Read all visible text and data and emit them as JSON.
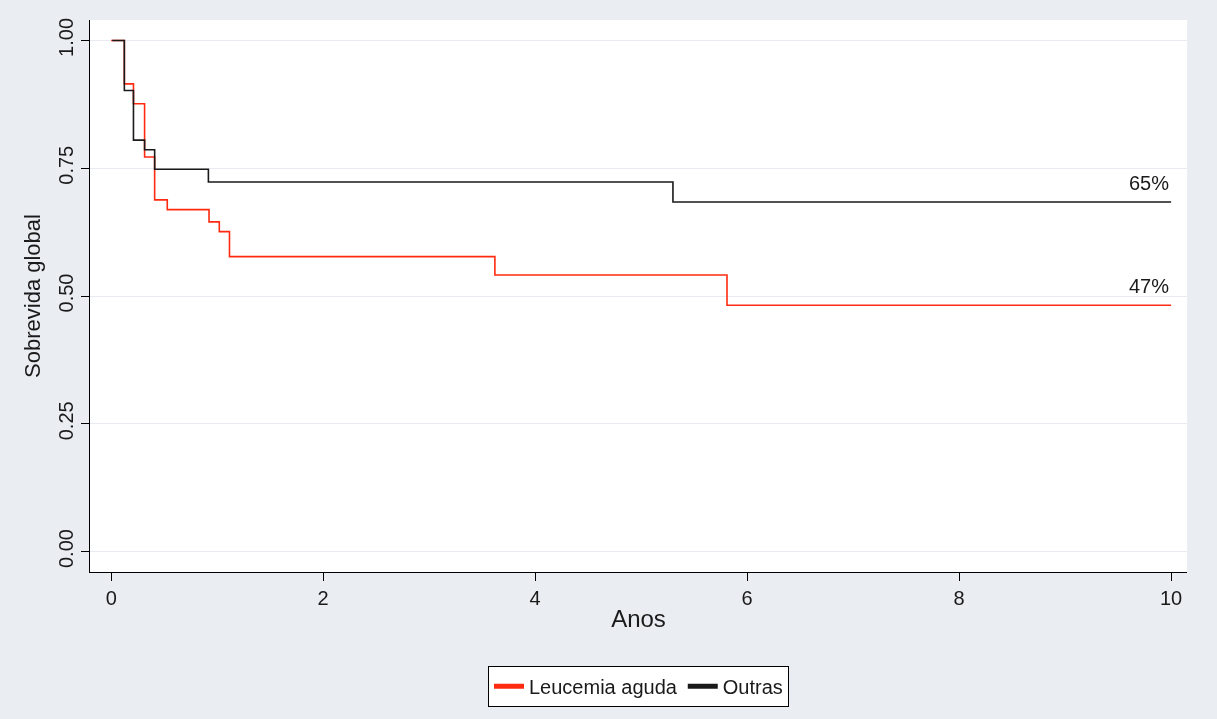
{
  "chart_data": {
    "type": "step",
    "xlabel": "Anos",
    "ylabel": "Sobrevida global",
    "xlim": [
      -0.2,
      10.15
    ],
    "xticks": [
      0,
      2,
      4,
      6,
      8,
      10
    ],
    "ylim": [
      -0.04,
      1.04
    ],
    "yticks": [
      {
        "value": 0,
        "label": "0.00"
      },
      {
        "value": 0.25,
        "label": "0.25"
      },
      {
        "value": 0.5,
        "label": "0.50"
      },
      {
        "value": 0.75,
        "label": "0.75"
      },
      {
        "value": 1,
        "label": "1.00"
      }
    ],
    "grid": "y",
    "legend": "bottom",
    "line_style": "solid",
    "marker": "none",
    "series": [
      {
        "name": "Leucemia aguda",
        "color": "#ff2a10",
        "x": [
          0,
          0.124,
          0.21,
          0.315,
          0.41,
          0.529,
          0.923,
          1.02,
          1.116,
          3.62,
          5.81,
          10
        ],
        "values": [
          1,
          0.915,
          0.876,
          0.772,
          0.688,
          0.669,
          0.645,
          0.626,
          0.577,
          0.541,
          0.482,
          0.482
        ]
      },
      {
        "name": "Outras",
        "color": "#1a1a1a",
        "x": [
          0.01,
          0.124,
          0.21,
          0.315,
          0.41,
          0.917,
          5.3,
          10
        ],
        "values": [
          1,
          0.902,
          0.805,
          0.786,
          0.748,
          0.723,
          0.684,
          0.684
        ]
      }
    ],
    "annotations": [
      {
        "text": "65%",
        "x": 10,
        "y": 0.684
      },
      {
        "text": "47%",
        "x": 10,
        "y": 0.482
      }
    ]
  }
}
